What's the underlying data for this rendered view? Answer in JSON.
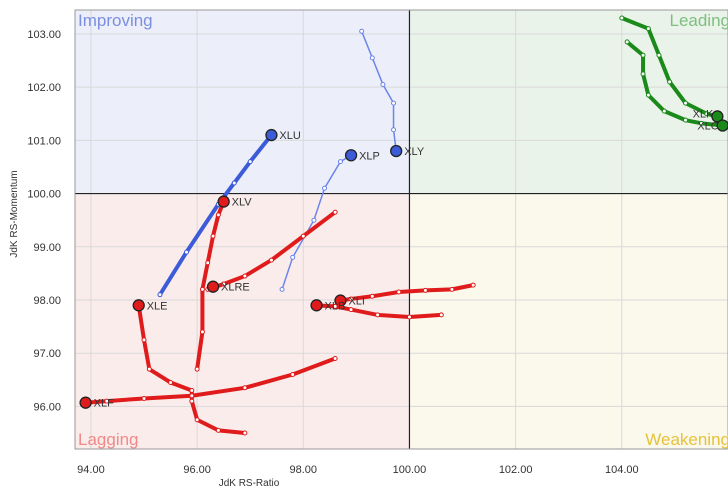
{
  "chart_data": {
    "type": "scatter",
    "title": "",
    "xlabel": "JdK RS-Ratio",
    "ylabel": "JdK RS-Momentum",
    "xlim": [
      93.7,
      106.0
    ],
    "ylim": [
      95.2,
      103.45
    ],
    "xticks": [
      "94.00",
      "96.00",
      "98.00",
      "100.00",
      "102.00",
      "104.00"
    ],
    "yticks": [
      "96.00",
      "97.00",
      "98.00",
      "99.00",
      "100.00",
      "101.00",
      "102.00",
      "103.00"
    ],
    "x_tick_values": [
      94,
      96,
      98,
      100,
      102,
      104
    ],
    "y_tick_values": [
      96,
      97,
      98,
      99,
      100,
      101,
      102,
      103
    ],
    "center": [
      100,
      100
    ],
    "grid": true,
    "quadrants": [
      {
        "name": "Improving",
        "color": "#7b8fe0",
        "fill": "#eceef9"
      },
      {
        "name": "Leading",
        "color": "#7ebf7e",
        "fill": "#eaf3ea"
      },
      {
        "name": "Lagging",
        "color": "#f08a8a",
        "fill": "#fbecec"
      },
      {
        "name": "Weakening",
        "color": "#e6c23a",
        "fill": "#fbf8ec"
      }
    ],
    "series": [
      {
        "name": "XLU",
        "color": "#3b5bd9",
        "line_color": "#3b5bd9",
        "width": 4,
        "x": [
          95.3,
          95.8,
          96.4,
          96.7,
          97.0,
          97.4
        ],
        "y": [
          98.1,
          98.9,
          99.8,
          100.2,
          100.6,
          101.1
        ]
      },
      {
        "name": "XLP",
        "color": "#3b5bd9",
        "line_color": "#6b85ea",
        "width": 1.5,
        "x": [
          97.6,
          97.8,
          98.2,
          98.4,
          98.7,
          98.9
        ],
        "y": [
          98.2,
          98.8,
          99.5,
          100.1,
          100.6,
          100.72
        ]
      },
      {
        "name": "XLY",
        "color": "#3b5bd9",
        "line_color": "#6b85ea",
        "width": 1.5,
        "x": [
          99.1,
          99.3,
          99.5,
          99.7,
          99.7,
          99.75
        ],
        "y": [
          103.05,
          102.55,
          102.05,
          101.7,
          101.2,
          100.8
        ]
      },
      {
        "name": "XLV",
        "color": "#e01b1b",
        "line_color": "#e01b1b",
        "width": 4,
        "x": [
          96.0,
          96.1,
          96.1,
          96.2,
          96.3,
          96.4,
          96.5
        ],
        "y": [
          96.7,
          97.4,
          98.2,
          98.7,
          99.2,
          99.6,
          99.85
        ]
      },
      {
        "name": "XLRE",
        "color": "#e01b1b",
        "line_color": "#e01b1b",
        "width": 4,
        "x": [
          98.6,
          98.0,
          97.4,
          96.9,
          96.5,
          96.2,
          96.3
        ],
        "y": [
          99.65,
          99.2,
          98.75,
          98.45,
          98.3,
          98.2,
          98.25
        ]
      },
      {
        "name": "XLE",
        "color": "#e01b1b",
        "line_color": "#e01b1b",
        "width": 4,
        "x": [
          96.9,
          96.4,
          96.0,
          95.9,
          95.9,
          95.5,
          95.1,
          95.0,
          94.9
        ],
        "y": [
          95.5,
          95.55,
          95.75,
          96.1,
          96.3,
          96.45,
          96.7,
          97.25,
          97.9
        ]
      },
      {
        "name": "XLF",
        "color": "#e01b1b",
        "line_color": "#e01b1b",
        "width": 4,
        "x": [
          98.6,
          97.8,
          96.9,
          95.9,
          95.0,
          94.3,
          93.9
        ],
        "y": [
          96.9,
          96.6,
          96.35,
          96.2,
          96.15,
          96.1,
          96.07
        ]
      },
      {
        "name": "XLI",
        "color": "#e01b1b",
        "line_color": "#e01b1b",
        "width": 4,
        "x": [
          101.2,
          100.8,
          100.3,
          99.8,
          99.3,
          98.9,
          98.7
        ],
        "y": [
          98.28,
          98.2,
          98.18,
          98.15,
          98.07,
          98.02,
          97.99
        ]
      },
      {
        "name": "XLB",
        "color": "#e01b1b",
        "line_color": "#e01b1b",
        "width": 4,
        "x": [
          100.6,
          100.0,
          99.4,
          98.9,
          98.6,
          98.25
        ],
        "y": [
          97.72,
          97.68,
          97.72,
          97.82,
          97.88,
          97.9
        ]
      },
      {
        "name": "XLK",
        "color": "#1a8a1a",
        "line_color": "#1a8a1a",
        "width": 4,
        "x": [
          104.0,
          104.5,
          104.7,
          104.9,
          105.2,
          105.6,
          105.8
        ],
        "y": [
          103.3,
          103.1,
          102.6,
          102.1,
          101.7,
          101.5,
          101.45
        ]
      },
      {
        "name": "XLC",
        "color": "#1a8a1a",
        "line_color": "#1a8a1a",
        "width": 4,
        "x": [
          104.1,
          104.4,
          104.4,
          104.5,
          104.8,
          105.2,
          105.5,
          105.9
        ],
        "y": [
          102.85,
          102.6,
          102.25,
          101.85,
          101.55,
          101.38,
          101.32,
          101.28
        ]
      }
    ],
    "labels": [
      {
        "series": "XLU",
        "text": "XLU"
      },
      {
        "series": "XLP",
        "text": "XLP"
      },
      {
        "series": "XLY",
        "text": "XLY"
      },
      {
        "series": "XLV",
        "text": "XLV"
      },
      {
        "series": "XLRE",
        "text": "XLRE"
      },
      {
        "series": "XLE",
        "text": "XLE"
      },
      {
        "series": "XLF",
        "text": "XLF"
      },
      {
        "series": "XLI",
        "text": "XLI"
      },
      {
        "series": "XLB",
        "text": "XLB"
      },
      {
        "series": "XLK",
        "text": "XLK"
      },
      {
        "series": "XLC",
        "text": "XLC"
      }
    ]
  }
}
